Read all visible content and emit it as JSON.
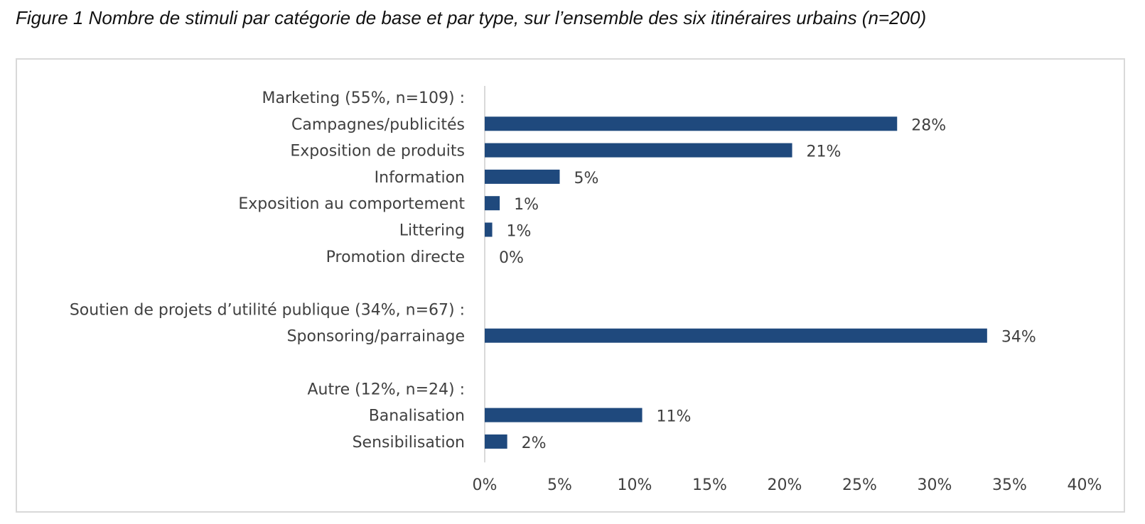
{
  "figure": {
    "title": "Figure 1 Nombre de stimuli par catégorie de base et par type, sur l’ensemble des six itinéraires urbains (n=200)"
  },
  "chart_data": {
    "type": "bar",
    "orientation": "horizontal",
    "title": "",
    "xlabel": "",
    "ylabel": "",
    "xlim": [
      0,
      40
    ],
    "x_ticks": [
      "0%",
      "5%",
      "10%",
      "15%",
      "20%",
      "25%",
      "30%",
      "35%",
      "40%"
    ],
    "grid": false,
    "legend": "none",
    "bar_color": "#1f497d",
    "rows": [
      {
        "label": "Marketing (55%, n=109) :",
        "header": true
      },
      {
        "label": "Campagnes/publicités",
        "value": 27.5,
        "data_label": "28%"
      },
      {
        "label": "Exposition de produits",
        "value": 20.5,
        "data_label": "21%"
      },
      {
        "label": "Information",
        "value": 5.0,
        "data_label": "5%"
      },
      {
        "label": "Exposition au comportement",
        "value": 1.0,
        "data_label": "1%"
      },
      {
        "label": "Littering",
        "value": 0.5,
        "data_label": "1%"
      },
      {
        "label": "Promotion directe",
        "value": 0,
        "data_label": "0%"
      },
      {
        "spacer": true
      },
      {
        "label": "Soutien de projets d’utilité publique (34%, n=67) :",
        "header": true
      },
      {
        "label": "Sponsoring/parrainage",
        "value": 33.5,
        "data_label": "34%"
      },
      {
        "spacer": true
      },
      {
        "label": "Autre (12%, n=24) :",
        "header": true
      },
      {
        "label": "Banalisation",
        "value": 10.5,
        "data_label": "11%"
      },
      {
        "label": "Sensibilisation",
        "value": 1.5,
        "data_label": "2%"
      }
    ]
  }
}
